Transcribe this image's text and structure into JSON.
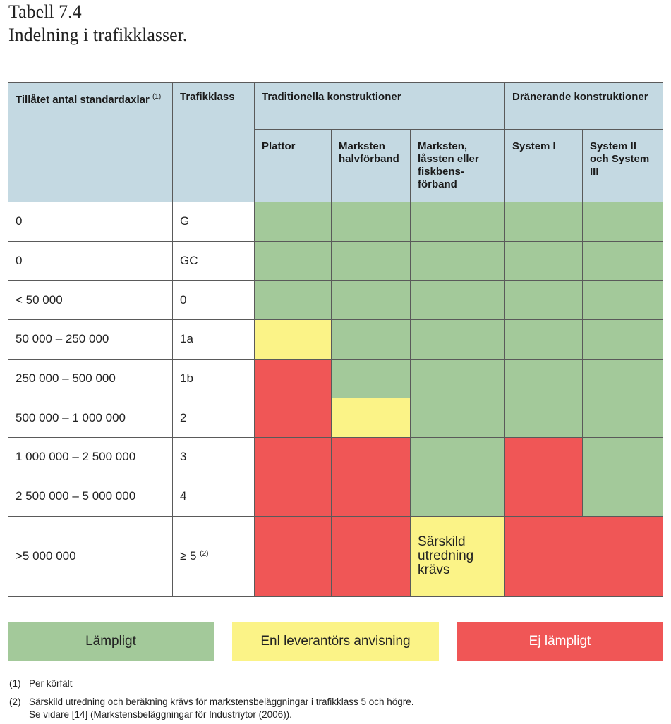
{
  "title": {
    "line1": "Tabell 7.4",
    "line2": "Indelning i trafikklasser."
  },
  "table": {
    "headers": {
      "col1": "Tillåtet antal standardaxlar",
      "col1_ref": "(1)",
      "col2": "Trafikklass",
      "group1": "Traditionella konstruktioner",
      "group2": "Dränerande konstruktioner",
      "sub": [
        "Plattor",
        "Marksten halvförband",
        "Marksten, låssten eller fiskbens-förband",
        "System I",
        "System II och System III"
      ]
    },
    "rows": [
      {
        "axlar": "0",
        "klass": "G",
        "cells": [
          "green",
          "green",
          "green",
          "green",
          "green"
        ]
      },
      {
        "axlar": "0",
        "klass": "GC",
        "cells": [
          "green",
          "green",
          "green",
          "green",
          "green"
        ]
      },
      {
        "axlar": "< 50 000",
        "klass": "0",
        "cells": [
          "green",
          "green",
          "green",
          "green",
          "green"
        ]
      },
      {
        "axlar": "50 000 – 250 000",
        "klass": "1a",
        "cells": [
          "yellow",
          "green",
          "green",
          "green",
          "green"
        ]
      },
      {
        "axlar": "250 000 – 500 000",
        "klass": "1b",
        "cells": [
          "red",
          "green",
          "green",
          "green",
          "green"
        ]
      },
      {
        "axlar": "500 000 – 1 000 000",
        "klass": "2",
        "cells": [
          "red",
          "yellow",
          "green",
          "green",
          "green"
        ]
      },
      {
        "axlar": "1 000 000 – 2 500 000",
        "klass": "3",
        "cells": [
          "red",
          "red",
          "green",
          "red",
          "green"
        ]
      },
      {
        "axlar": "2 500 000 – 5 000 000",
        "klass": "4",
        "cells": [
          "red",
          "red",
          "green",
          "red",
          "green"
        ]
      }
    ],
    "last_row": {
      "axlar": ">5 000 000",
      "klass": "≥ 5",
      "klass_ref": "(2)",
      "special_text": "Särskild utredning krävs"
    }
  },
  "legend": {
    "green": "Lämpligt",
    "yellow": "Enl leverantörs anvisning",
    "red": "Ej lämpligt"
  },
  "colors": {
    "green": "#a3c99a",
    "yellow": "#fbf387",
    "red": "#f05656",
    "header": "#c4d9e2"
  },
  "footnotes": [
    {
      "num": "(1)",
      "lines": [
        "Per körfält"
      ]
    },
    {
      "num": "(2)",
      "lines": [
        "Särskild utredning och beräkning krävs för markstensbeläggningar i trafikklass 5 och högre.",
        "Se vidare [14] (Markstensbeläggningar för Industriytor (2006))."
      ]
    }
  ]
}
